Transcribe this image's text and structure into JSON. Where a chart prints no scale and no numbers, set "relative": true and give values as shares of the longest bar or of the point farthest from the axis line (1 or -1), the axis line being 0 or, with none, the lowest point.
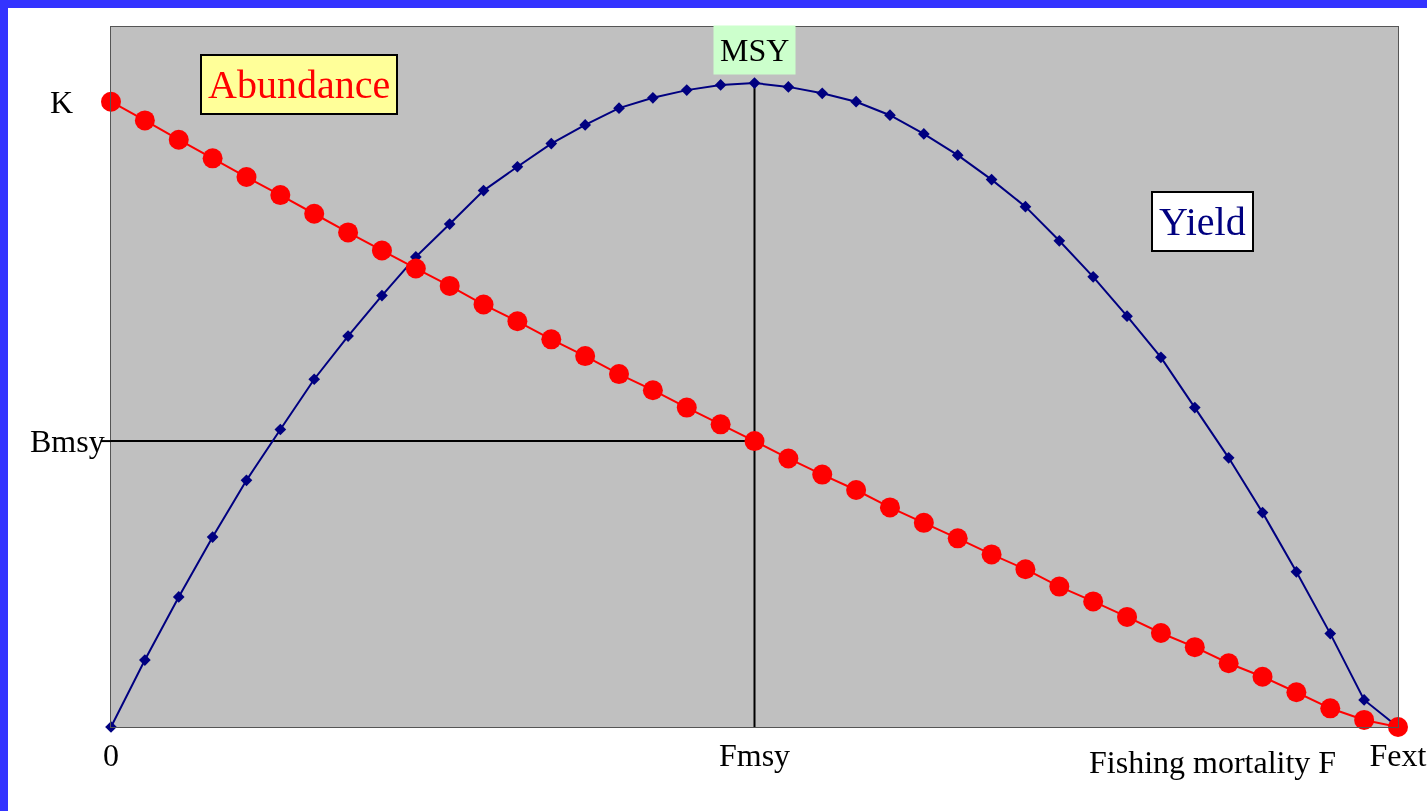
{
  "chart_data": {
    "type": "line",
    "relative": true,
    "xlabel": "Fishing mortality F",
    "categories": [
      "0",
      null,
      null,
      null,
      null,
      null,
      null,
      null,
      null,
      null,
      null,
      null,
      null,
      null,
      null,
      null,
      null,
      null,
      null,
      "Fmsy",
      null,
      null,
      null,
      null,
      null,
      null,
      null,
      null,
      null,
      null,
      null,
      null,
      null,
      null,
      null,
      null,
      null,
      null,
      "Fext"
    ],
    "series": [
      {
        "name": "Abundance",
        "color": "#ff0000",
        "marker": "circle",
        "values": [
          0.971,
          0.942,
          0.912,
          0.883,
          0.854,
          0.826,
          0.797,
          0.768,
          0.74,
          0.712,
          0.685,
          0.656,
          0.63,
          0.602,
          0.576,
          0.548,
          0.523,
          0.496,
          0.47,
          0.444,
          0.417,
          0.392,
          0.368,
          0.341,
          0.317,
          0.293,
          0.268,
          0.245,
          0.218,
          0.195,
          0.171,
          0.146,
          0.124,
          0.099,
          0.078,
          0.054,
          0.029,
          0.011,
          0
        ]
      },
      {
        "name": "Yield",
        "color": "#000080",
        "marker": "diamond",
        "values": [
          0,
          0.104,
          0.202,
          0.295,
          0.383,
          0.462,
          0.54,
          0.607,
          0.67,
          0.73,
          0.781,
          0.833,
          0.87,
          0.906,
          0.935,
          0.961,
          0.977,
          0.989,
          0.997,
          1,
          0.994,
          0.984,
          0.971,
          0.95,
          0.921,
          0.888,
          0.85,
          0.808,
          0.755,
          0.699,
          0.638,
          0.574,
          0.496,
          0.418,
          0.333,
          0.241,
          0.145,
          0.042,
          0
        ]
      }
    ],
    "ref_lines": [
      {
        "axis": "x",
        "value": "Fmsy"
      },
      {
        "axis": "y",
        "value": 0.444,
        "label": "Bmsy"
      }
    ],
    "annotations": [
      {
        "text": "MSY",
        "x": "Fmsy",
        "y": 1
      },
      {
        "text": "K",
        "x": "0",
        "y": 0.971
      }
    ],
    "grid": false,
    "legend": false,
    "tick_labels": "x",
    "line_style": "solid"
  }
}
